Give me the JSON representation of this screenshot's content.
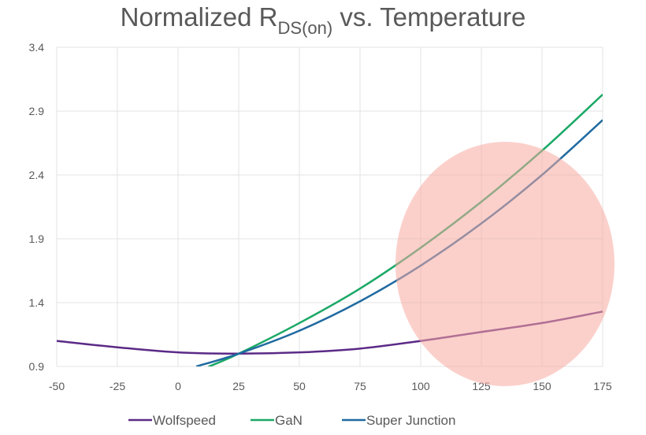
{
  "chart_data": {
    "type": "line",
    "title": {
      "main": "Normalized R",
      "subscript": "DS(on)",
      "rest": " vs. Temperature"
    },
    "xlabel": "",
    "ylabel": "",
    "xlim": [
      -50,
      175
    ],
    "ylim": [
      0.9,
      3.4
    ],
    "xticks": [
      -50,
      -25,
      0,
      25,
      50,
      75,
      100,
      125,
      150,
      175
    ],
    "yticks": [
      0.9,
      1.4,
      1.9,
      2.4,
      2.9,
      3.4
    ],
    "ytick_labels": [
      "0.9",
      "1.4",
      "1.9",
      "2.4",
      "2.9",
      "3.4"
    ],
    "grid": true,
    "legend_position": "bottom",
    "series": [
      {
        "name": "Wolfspeed",
        "color": "#5b2a86",
        "x": [
          -50,
          -25,
          0,
          25,
          50,
          75,
          100,
          125,
          150,
          175
        ],
        "y": [
          1.1,
          1.05,
          1.01,
          1.0,
          1.01,
          1.04,
          1.1,
          1.17,
          1.24,
          1.33
        ]
      },
      {
        "name": "GaN",
        "color": "#1aa866",
        "x": [
          12.5,
          25,
          50,
          75,
          100,
          125,
          150,
          175
        ],
        "y": [
          0.897,
          1.0,
          1.24,
          1.51,
          1.83,
          2.19,
          2.59,
          3.03
        ]
      },
      {
        "name": "Super Junction",
        "color": "#1f6aa0",
        "x": [
          7.5,
          25,
          50,
          75,
          100,
          125,
          150,
          175
        ],
        "y": [
          0.9,
          1.0,
          1.18,
          1.41,
          1.69,
          2.02,
          2.4,
          2.83
        ]
      }
    ],
    "annotation": {
      "shape": "ellipse",
      "color": "#f8aaa0",
      "center": [
        136,
        1.69
      ]
    }
  }
}
